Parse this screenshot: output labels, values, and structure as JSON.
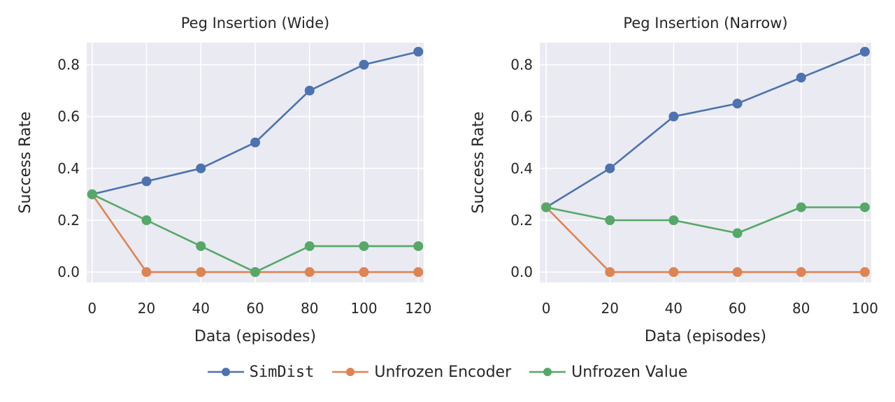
{
  "colors": {
    "plot_bg": "#eaeaf2",
    "grid": "#ffffff",
    "text": "#262626",
    "SimDist": "#4c72b0",
    "Unfrozen Encoder": "#dd8452",
    "Unfrozen Value": "#55a868"
  },
  "legend": {
    "items": [
      {
        "label": "SimDist",
        "color": "#4c72b0",
        "mono": true
      },
      {
        "label": "Unfrozen Encoder",
        "color": "#dd8452",
        "mono": false
      },
      {
        "label": "Unfrozen Value",
        "color": "#55a868",
        "mono": false
      }
    ],
    "placement": "bottom-center"
  },
  "chart_data": [
    {
      "type": "line",
      "title": "Peg Insertion (Wide)",
      "xlabel": "Data (episodes)",
      "ylabel": "Success Rate",
      "x": [
        0,
        20,
        40,
        60,
        80,
        100,
        120
      ],
      "xticks": [
        0,
        20,
        40,
        60,
        80,
        100,
        120
      ],
      "yticks": [
        0.0,
        0.2,
        0.4,
        0.6,
        0.8
      ],
      "xlim": [
        -2,
        122
      ],
      "ylim": [
        -0.04,
        0.885
      ],
      "grid": true,
      "series": [
        {
          "name": "SimDist",
          "values": [
            0.3,
            0.35,
            0.4,
            0.5,
            0.7,
            0.8,
            0.85
          ]
        },
        {
          "name": "Unfrozen Encoder",
          "values": [
            0.3,
            0.0,
            0.0,
            0.0,
            0.0,
            0.0,
            0.0
          ]
        },
        {
          "name": "Unfrozen Value",
          "values": [
            0.3,
            0.2,
            0.1,
            0.0,
            0.1,
            0.1,
            0.1
          ]
        }
      ]
    },
    {
      "type": "line",
      "title": "Peg Insertion (Narrow)",
      "xlabel": "Data (episodes)",
      "ylabel": "Success Rate",
      "x": [
        0,
        20,
        40,
        60,
        80,
        100
      ],
      "xticks": [
        0,
        20,
        40,
        60,
        80,
        100
      ],
      "yticks": [
        0.0,
        0.2,
        0.4,
        0.6,
        0.8
      ],
      "xlim": [
        -2,
        102
      ],
      "ylim": [
        -0.04,
        0.885
      ],
      "grid": true,
      "series": [
        {
          "name": "SimDist",
          "values": [
            0.25,
            0.4,
            0.6,
            0.65,
            0.75,
            0.85
          ]
        },
        {
          "name": "Unfrozen Encoder",
          "values": [
            0.25,
            0.0,
            0.0,
            0.0,
            0.0,
            0.0
          ]
        },
        {
          "name": "Unfrozen Value",
          "values": [
            0.25,
            0.2,
            0.2,
            0.15,
            0.25,
            0.25
          ]
        }
      ]
    }
  ]
}
